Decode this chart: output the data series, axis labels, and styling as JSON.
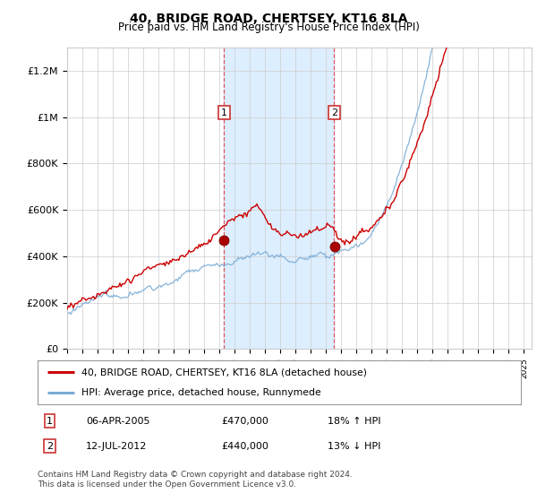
{
  "title": "40, BRIDGE ROAD, CHERTSEY, KT16 8LA",
  "subtitle": "Price paid vs. HM Land Registry's House Price Index (HPI)",
  "legend_line1": "40, BRIDGE ROAD, CHERTSEY, KT16 8LA (detached house)",
  "legend_line2": "HPI: Average price, detached house, Runnymede",
  "footer": "Contains HM Land Registry data © Crown copyright and database right 2024.\nThis data is licensed under the Open Government Licence v3.0.",
  "sale1_label": "1",
  "sale1_date": "06-APR-2005",
  "sale1_price": "£470,000",
  "sale1_hpi": "18% ↑ HPI",
  "sale2_label": "2",
  "sale2_date": "12-JUL-2012",
  "sale2_price": "£440,000",
  "sale2_hpi": "13% ↓ HPI",
  "red_color": "#cc0000",
  "blue_color": "#7aacd6",
  "shade_color": "#ddeeff",
  "background_color": "#ffffff",
  "grid_color": "#cccccc",
  "ylim_min": 0,
  "ylim_max": 1300000,
  "x_start_year": 1995,
  "x_end_year": 2025,
  "sale1_year": 2005.3,
  "sale2_year": 2012.54,
  "sale1_value": 470000,
  "sale2_value": 440000
}
